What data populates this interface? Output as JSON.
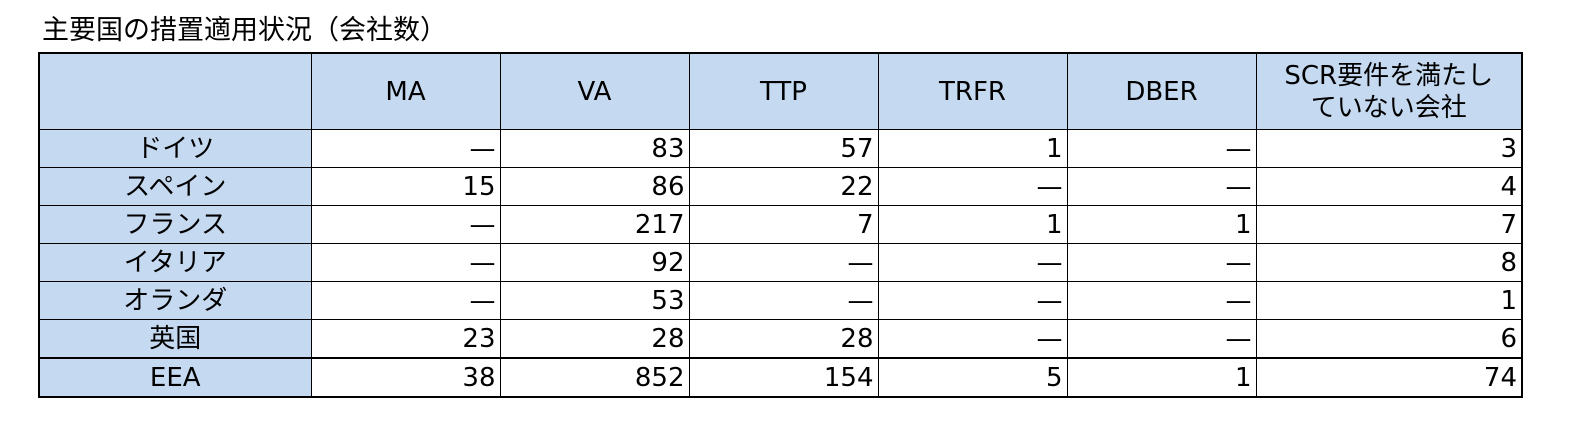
{
  "title": "主要国の措置適用状況（会社数）",
  "table": {
    "header": [
      "",
      "MA",
      "VA",
      "TTP",
      "TRFR",
      "DBER",
      "SCR要件を満たしていない会社"
    ],
    "rows": [
      [
        "ドイツ",
        "—",
        83,
        57,
        1,
        "—",
        3
      ],
      [
        "スペイン",
        15,
        86,
        22,
        "—",
        "—",
        4
      ],
      [
        "フランス",
        "—",
        217,
        7,
        1,
        1,
        7
      ],
      [
        "イタリア",
        "—",
        92,
        "—",
        "—",
        "—",
        8
      ],
      [
        "オランダ",
        "—",
        53,
        "—",
        "—",
        "—",
        1
      ],
      [
        "英国",
        23,
        28,
        28,
        "—",
        "—",
        6
      ],
      [
        "EEA",
        38,
        852,
        154,
        5,
        1,
        74
      ]
    ]
  }
}
